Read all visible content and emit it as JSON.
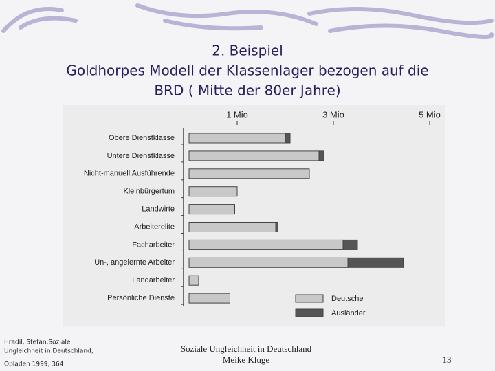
{
  "slide": {
    "title_lines": [
      "2. Beispiel",
      "Goldhorpes Modell der Klassenlager bezogen auf die",
      "BRD ( Mitte der 80er Jahre)"
    ],
    "source_lines": [
      "Hradil, Stefan,Soziale",
      "Ungleichheit in Deutschland,",
      "Opladen 1999, 364"
    ],
    "footer_lines": [
      "Soziale Ungleichheit in Deutschland",
      "Meike Kluge"
    ],
    "page_number": "13"
  },
  "chart_data": {
    "type": "stacked-bar-horizontal",
    "categories": [
      "Obere Dienstklasse",
      "Untere Dienstklasse",
      "Nicht-manuell Ausführende",
      "Kleinbürgertum",
      "Landwirte",
      "Arbeiterelite",
      "Facharbeiter",
      "Un-, angelernte Arbeiter",
      "Landarbeiter",
      "Persönliche Dienste"
    ],
    "series": [
      {
        "name": "Deutsche",
        "color": "#c8c8c8",
        "values": [
          2.0,
          2.7,
          2.5,
          1.0,
          0.95,
          1.8,
          3.2,
          3.3,
          0.2,
          0.85
        ]
      },
      {
        "name": "Ausländer",
        "color": "#555555",
        "values": [
          0.1,
          0.1,
          null,
          null,
          null,
          0.05,
          0.3,
          1.15,
          null,
          null
        ]
      }
    ],
    "xlim": [
      0,
      5.2
    ],
    "xticks": [
      {
        "value": 1,
        "label": "1 Mio"
      },
      {
        "value": 3,
        "label": "3 Mio"
      },
      {
        "value": 5,
        "label": "5 Mio"
      }
    ],
    "legend": "bottom-right"
  }
}
